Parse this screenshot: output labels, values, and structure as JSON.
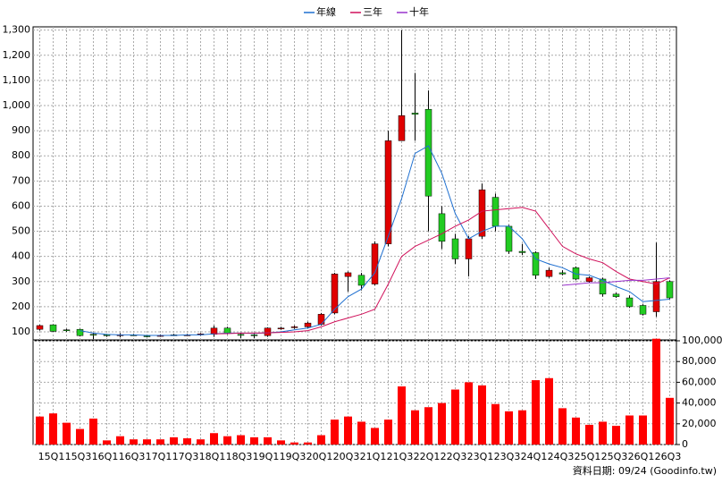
{
  "chart_data": [
    {
      "type": "candlestick",
      "up_color": "#e00000",
      "down_color": "#22cc22",
      "ylim": [
        68,
        1313
      ],
      "yticks": [
        100,
        200,
        300,
        400,
        500,
        600,
        700,
        800,
        900,
        {
          "value": 1000,
          "label": "1,000"
        },
        {
          "value": 1100,
          "label": "1,100"
        },
        {
          "value": 1200,
          "label": "1,200"
        },
        {
          "value": 1300,
          "label": "1,300"
        }
      ],
      "open": [
        110,
        128,
        108,
        110,
        90,
        88,
        85,
        88,
        84,
        82,
        88,
        86,
        88,
        90,
        115,
        90,
        88,
        85,
        112,
        118,
        120,
        130,
        175,
        320,
        325,
        290,
        450,
        860,
        970,
        985,
        570,
        470,
        390,
        480,
        635,
        520,
        420,
        415,
        320,
        335,
        355,
        300,
        310,
        250,
        235,
        205,
        180,
        300
      ],
      "high": [
        128,
        130,
        112,
        112,
        95,
        92,
        95,
        92,
        88,
        90,
        92,
        92,
        95,
        125,
        120,
        95,
        92,
        118,
        120,
        125,
        140,
        175,
        335,
        340,
        335,
        460,
        900,
        1300,
        1130,
        1060,
        600,
        490,
        480,
        690,
        650,
        525,
        450,
        420,
        355,
        345,
        360,
        320,
        315,
        255,
        245,
        210,
        455,
        305
      ],
      "low": [
        105,
        100,
        100,
        82,
        70,
        80,
        78,
        84,
        78,
        80,
        84,
        84,
        85,
        80,
        90,
        75,
        75,
        80,
        108,
        112,
        115,
        125,
        170,
        260,
        265,
        285,
        440,
        860,
        860,
        500,
        430,
        370,
        320,
        470,
        500,
        410,
        405,
        310,
        315,
        325,
        305,
        295,
        240,
        235,
        195,
        165,
        160,
        230
      ],
      "close": [
        125,
        102,
        105,
        85,
        88,
        86,
        88,
        86,
        82,
        86,
        86,
        88,
        92,
        115,
        95,
        86,
        86,
        115,
        115,
        120,
        135,
        170,
        330,
        335,
        285,
        450,
        860,
        960,
        965,
        640,
        460,
        390,
        470,
        665,
        520,
        420,
        415,
        325,
        345,
        330,
        310,
        315,
        250,
        240,
        200,
        170,
        300,
        235
      ],
      "series": [
        {
          "name": "年線",
          "color": "#1e6fd0",
          "values": [
            null,
            null,
            null,
            105,
            95,
            90,
            88,
            88,
            86,
            86,
            86,
            88,
            88,
            92,
            95,
            95,
            94,
            96,
            100,
            108,
            115,
            130,
            190,
            240,
            270,
            335,
            480,
            630,
            810,
            840,
            730,
            570,
            470,
            500,
            520,
            520,
            470,
            390,
            370,
            355,
            330,
            325,
            305,
            280,
            260,
            220,
            225,
            230
          ]
        },
        {
          "name": "三年",
          "color": "#d0105a",
          "values": [
            null,
            null,
            null,
            null,
            null,
            null,
            null,
            null,
            null,
            null,
            null,
            null,
            null,
            92,
            93,
            95,
            95,
            96,
            98,
            100,
            105,
            120,
            140,
            155,
            170,
            190,
            290,
            400,
            440,
            465,
            490,
            520,
            545,
            580,
            585,
            590,
            595,
            580,
            510,
            440,
            410,
            390,
            375,
            340,
            310,
            300,
            290,
            315
          ]
        },
        {
          "name": "十年",
          "color": "#9932cc",
          "values": [
            null,
            null,
            null,
            null,
            null,
            null,
            null,
            null,
            null,
            null,
            null,
            null,
            null,
            null,
            null,
            null,
            null,
            null,
            null,
            null,
            null,
            null,
            null,
            null,
            null,
            null,
            null,
            null,
            null,
            null,
            null,
            null,
            null,
            null,
            null,
            null,
            null,
            null,
            null,
            285,
            290,
            295,
            295,
            300,
            305,
            305,
            310,
            315
          ]
        }
      ]
    },
    {
      "type": "bar",
      "color": "#ff0000",
      "categories": [
        null,
        "15Q1",
        null,
        "15Q3",
        null,
        "16Q1",
        null,
        "16Q3",
        null,
        "17Q1",
        null,
        "17Q3",
        null,
        "18Q1",
        null,
        "18Q3",
        null,
        "19Q1",
        null,
        "19Q3",
        null,
        "20Q1",
        null,
        "20Q3",
        null,
        "21Q1",
        null,
        "21Q3",
        null,
        "22Q1",
        null,
        "22Q3",
        null,
        "23Q1",
        null,
        "23Q3",
        null,
        "24Q1",
        null,
        "24Q3",
        null,
        "25Q1",
        null,
        "25Q3",
        null,
        "26Q1",
        null,
        "26Q3"
      ],
      "values": [
        27000,
        30000,
        21000,
        15000,
        25000,
        4000,
        8000,
        5000,
        5000,
        5000,
        7000,
        6000,
        5000,
        11000,
        8000,
        9000,
        7000,
        7000,
        4000,
        2000,
        2000,
        9000,
        24000,
        27000,
        22000,
        16000,
        24000,
        56000,
        33000,
        36000,
        40000,
        53000,
        60000,
        57000,
        39000,
        32000,
        33000,
        62000,
        64000,
        35000,
        26000,
        19000,
        22000,
        18000,
        28000,
        28000,
        102000,
        45000
      ],
      "ylim": [
        0,
        100000
      ],
      "yticks": [
        0,
        {
          "value": 20000,
          "label": "20,000"
        },
        {
          "value": 40000,
          "label": "40,000"
        },
        {
          "value": 60000,
          "label": "60,000"
        },
        {
          "value": 80000,
          "label": "80,000"
        },
        {
          "value": 100000,
          "label": "100,000"
        }
      ],
      "footnote": "資料日期: 09/24  (Goodinfo.tw)"
    }
  ]
}
